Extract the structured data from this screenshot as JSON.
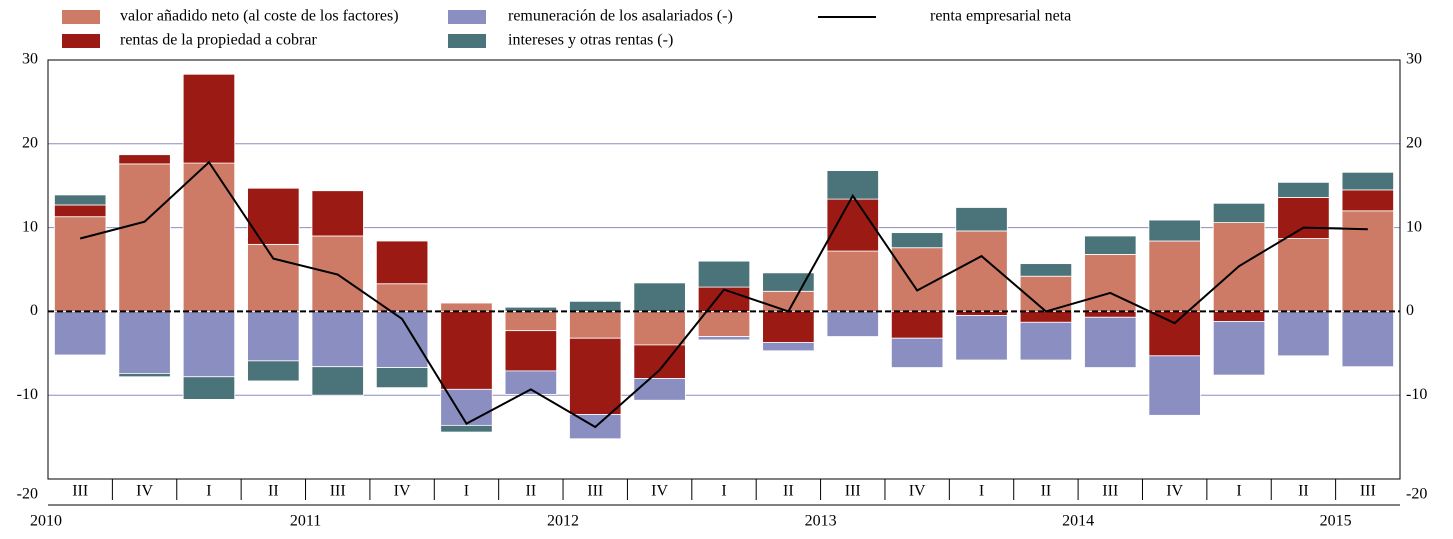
{
  "chart_data": {
    "type": "bar",
    "categories": [
      "III",
      "IV",
      "I",
      "II",
      "III",
      "IV",
      "I",
      "II",
      "III",
      "IV",
      "I",
      "II",
      "III",
      "IV",
      "I",
      "II",
      "III",
      "IV",
      "I",
      "II",
      "III"
    ],
    "years": [
      "2010",
      "2011",
      "2012",
      "2013",
      "2014",
      "2015"
    ],
    "series": [
      {
        "name": "valor añadido neto (al coste de los factores)",
        "color": "#cd7b67",
        "values": [
          11.3,
          17.6,
          17.7,
          8.0,
          9.0,
          3.3,
          1.0,
          -2.3,
          -3.2,
          -4.0,
          -3.0,
          2.4,
          7.2,
          7.6,
          9.6,
          4.2,
          6.8,
          8.4,
          10.6,
          8.7,
          12.0
        ]
      },
      {
        "name": "rentas de la propiedad a cobrar",
        "color": "#9c1a14",
        "values": [
          1.4,
          1.1,
          10.6,
          6.7,
          5.4,
          5.1,
          -9.3,
          -4.8,
          -9.1,
          -4.0,
          2.9,
          -3.7,
          6.2,
          -3.2,
          -0.5,
          -1.3,
          -0.7,
          -5.3,
          -1.2,
          4.9,
          2.5
        ]
      },
      {
        "name": "remuneración de los asalariados (-)",
        "color": "#8b8ec0",
        "values": [
          -5.2,
          -7.4,
          -7.8,
          -5.9,
          -6.6,
          -6.7,
          -4.3,
          -2.8,
          -2.9,
          -2.6,
          -0.4,
          -1.0,
          -3.0,
          -3.5,
          -5.3,
          -4.5,
          -6.0,
          -7.1,
          -6.4,
          -5.3,
          -6.6
        ]
      },
      {
        "name": "intereses y otras rentas (-)",
        "color": "#4a7479",
        "values": [
          1.2,
          -0.4,
          -2.7,
          -2.4,
          -3.4,
          -2.4,
          -0.8,
          0.5,
          1.2,
          3.4,
          3.1,
          2.2,
          3.4,
          1.8,
          2.8,
          1.5,
          2.2,
          2.5,
          2.3,
          1.8,
          2.1
        ]
      }
    ],
    "line": {
      "type": "line",
      "name": "renta empresarial neta",
      "color": "#000000",
      "values": [
        8.7,
        10.7,
        17.8,
        6.3,
        4.4,
        -0.9,
        -13.4,
        -9.3,
        -13.8,
        -7.0,
        2.6,
        0,
        13.8,
        2.5,
        6.6,
        0,
        2.2,
        -1.4,
        5.4,
        10.0,
        9.8
      ]
    },
    "ylim": [
      -20,
      30
    ],
    "yticks": [
      -20,
      -10,
      0,
      10,
      20,
      30
    ],
    "grid": true
  }
}
